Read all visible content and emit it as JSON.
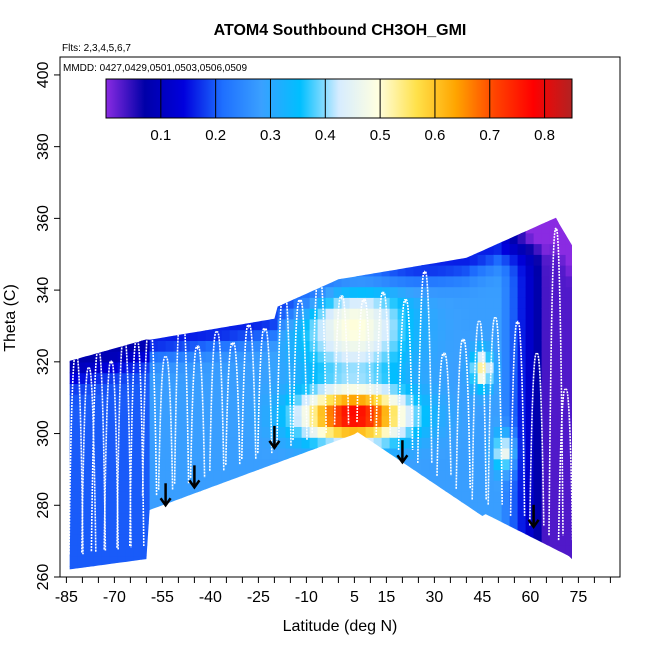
{
  "chart_data": {
    "type": "heatmap",
    "title": "ATOM4 Southbound CH3OH_GMI",
    "flights_label": "Flts: 2,3,4,5,6,7",
    "dates_label": "MMDD: 0427,0429,0501,0503,0506,0509",
    "xlabel": "Latitude (deg N)",
    "ylabel": "Theta (C)",
    "xlim": [
      -87,
      88
    ],
    "ylim": [
      260,
      405
    ],
    "x_ticks": [
      -85,
      -70,
      -55,
      -40,
      -25,
      -10,
      5,
      15,
      30,
      45,
      60,
      75
    ],
    "x_minor_step": 5,
    "y_ticks": [
      260,
      280,
      300,
      320,
      340,
      360,
      380,
      400
    ],
    "colorbar": {
      "min": 0,
      "max": 0.85,
      "ticks": [
        0.1,
        0.2,
        0.3,
        0.4,
        0.5,
        0.6,
        0.7,
        0.8
      ],
      "colors": [
        "#8a2be2",
        "#0000a8",
        "#0000dd",
        "#1e6fff",
        "#3aa0ff",
        "#00bfff",
        "#d6ecff",
        "#ffffe0",
        "#ffe14a",
        "#ffa500",
        "#ff4500",
        "#ff0000",
        "#b22222"
      ]
    },
    "arrows": [
      {
        "lat": -54,
        "theta": 280
      },
      {
        "lat": -45,
        "theta": 285
      },
      {
        "lat": -20,
        "theta": 296
      },
      {
        "lat": 20,
        "theta": 292
      },
      {
        "lat": 61,
        "theta": 274
      }
    ],
    "profiles": [
      {
        "lat": -82,
        "theta_max": 322
      },
      {
        "lat": -78,
        "theta_max": 318
      },
      {
        "lat": -75,
        "theta_max": 323
      },
      {
        "lat": -71,
        "theta_max": 320
      },
      {
        "lat": -67,
        "theta_max": 327
      },
      {
        "lat": -63,
        "theta_max": 326
      },
      {
        "lat": -59,
        "theta_max": 330
      },
      {
        "lat": -54,
        "theta_max": 321
      },
      {
        "lat": -49,
        "theta_max": 335
      },
      {
        "lat": -44,
        "theta_max": 324
      },
      {
        "lat": -38,
        "theta_max": 328
      },
      {
        "lat": -33,
        "theta_max": 325
      },
      {
        "lat": -28,
        "theta_max": 330
      },
      {
        "lat": -23,
        "theta_max": 329
      },
      {
        "lat": -17,
        "theta_max": 340
      },
      {
        "lat": -12,
        "theta_max": 337
      },
      {
        "lat": -6,
        "theta_max": 344
      },
      {
        "lat": 1,
        "theta_max": 338
      },
      {
        "lat": 8,
        "theta_max": 337
      },
      {
        "lat": 14,
        "theta_max": 339
      },
      {
        "lat": 21,
        "theta_max": 337
      },
      {
        "lat": 27,
        "theta_max": 345
      },
      {
        "lat": 33,
        "theta_max": 322
      },
      {
        "lat": 39,
        "theta_max": 326
      },
      {
        "lat": 44,
        "theta_max": 331
      },
      {
        "lat": 49,
        "theta_max": 332
      },
      {
        "lat": 56,
        "theta_max": 331
      },
      {
        "lat": 62,
        "theta_max": 322
      },
      {
        "lat": 68,
        "theta_max": 357
      },
      {
        "lat": 71,
        "theta_max": 312
      }
    ]
  }
}
